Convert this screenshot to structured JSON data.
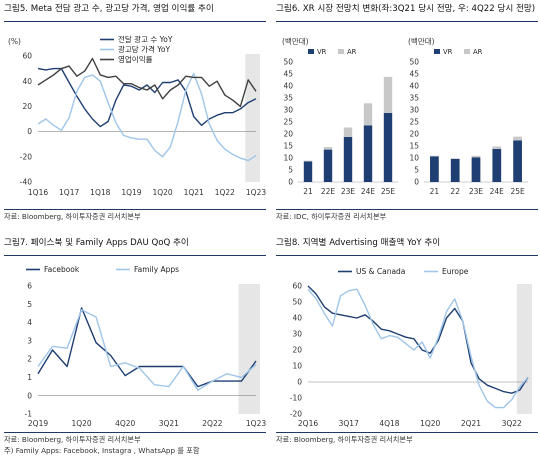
{
  "chart_data": [
    {
      "id": "fig5",
      "type": "line",
      "title": "그림5. Meta 전담 광고 수, 광고당 가격, 영업 이익률 추이",
      "unit": "(%)",
      "source": "자료: Bloomberg, 하이투자증권 리서치본부",
      "ylim": [
        -40,
        60
      ],
      "yticks": [
        -40,
        -20,
        0,
        20,
        40,
        60
      ],
      "xticks": [
        "1Q16",
        "1Q17",
        "1Q18",
        "1Q19",
        "1Q20",
        "1Q21",
        "1Q22",
        "1Q23"
      ],
      "x_start": "1Q16",
      "x_end": "1Q23",
      "x_points": 29,
      "shade_from": "4Q22",
      "legend_position": "top-center",
      "grid": false,
      "series": [
        {
          "name": "전달 광고 수 YoY",
          "color": "#1f3f73",
          "width": 1.4,
          "values": [
            50,
            49,
            50,
            50,
            39,
            28,
            18,
            10,
            4,
            8,
            25,
            37,
            36,
            33,
            37,
            31,
            39,
            39,
            41,
            32,
            12,
            5,
            10,
            13,
            15,
            15,
            18,
            23,
            26
          ]
        },
        {
          "name": "광고당 가격 YoY",
          "color": "#9fc5e8",
          "width": 1.4,
          "values": [
            6,
            10,
            5,
            1,
            11,
            32,
            43,
            45,
            40,
            23,
            7,
            -3,
            -5,
            -6,
            -6,
            -15,
            -20,
            -12,
            8,
            33,
            46,
            30,
            6,
            -7,
            -14,
            -18,
            -21,
            -23,
            -19
          ]
        },
        {
          "name": "영업이익률",
          "color": "#404040",
          "width": 1.4,
          "values": [
            37,
            41,
            45,
            50,
            52,
            44,
            48,
            58,
            45,
            43,
            44,
            38,
            38,
            35,
            33,
            37,
            26,
            33,
            37,
            44,
            43,
            43,
            36,
            40,
            29,
            25,
            20,
            41,
            32
          ]
        }
      ]
    },
    {
      "id": "fig6",
      "type": "bar",
      "title": "그림6. XR 시장 전망치 변화(좌:3Q21 당시 전망, 우: 4Q22 당시 전망)",
      "source": "자료: IDC, 하이투자증권 리서치본부",
      "ylim": [
        0,
        50
      ],
      "yticks": [
        0,
        5,
        10,
        15,
        20,
        25,
        30,
        35,
        40,
        45,
        50
      ],
      "legend_position": "top-left",
      "grid": false,
      "subcharts": [
        {
          "unit": "(백만대)",
          "categories": [
            "21",
            "22E",
            "23E",
            "24E",
            "25E"
          ],
          "series": [
            {
              "name": "VR",
              "color": "#1f3f73",
              "values": [
                8.6,
                13.5,
                18.8,
                23.6,
                28.8
              ]
            },
            {
              "name": "AR",
              "color": "#c8c8c8",
              "values": [
                0.3,
                1.1,
                3.9,
                9.2,
                15.0
              ]
            }
          ]
        },
        {
          "unit": "(백만대)",
          "categories": [
            "21",
            "22",
            "23E",
            "24E",
            "25E"
          ],
          "series": [
            {
              "name": "VR",
              "color": "#1f3f73",
              "values": [
                10.7,
                9.6,
                10.3,
                13.8,
                17.3
              ]
            },
            {
              "name": "AR",
              "color": "#c8c8c8",
              "values": [
                0.2,
                0.3,
                0.6,
                1.0,
                1.6
              ]
            }
          ]
        }
      ]
    },
    {
      "id": "fig7",
      "type": "line",
      "title": "그림7. 페이스북 및 Family Apps DAU QoQ 추이",
      "source": "자료: Bloomberg, 하이투자증권 리서치본부",
      "note": "주) Family Apps: Facebook, Instagra , WhatsApp 를 포함",
      "ylim": [
        -1,
        6
      ],
      "yticks": [
        -1,
        0,
        1,
        2,
        3,
        4,
        5,
        6
      ],
      "xticks": [
        "2Q19",
        "1Q20",
        "4Q20",
        "3Q21",
        "2Q22",
        "1Q23"
      ],
      "x_start": "2Q19",
      "x_end": "1Q23",
      "x_points": 16,
      "shade_from": "4Q22",
      "legend_position": "top-left",
      "grid": false,
      "series": [
        {
          "name": "Facebook",
          "color": "#1f3f73",
          "width": 1.4,
          "values": [
            1.2,
            2.5,
            1.6,
            4.8,
            2.9,
            2.2,
            1.1,
            1.6,
            1.6,
            1.6,
            1.6,
            0.5,
            0.8,
            0.8,
            0.8,
            1.9
          ]
        },
        {
          "name": "Family Apps",
          "color": "#9fc5e8",
          "width": 1.4,
          "values": [
            1.6,
            2.7,
            2.6,
            4.7,
            4.3,
            1.6,
            1.8,
            1.5,
            0.6,
            0.5,
            1.6,
            0.3,
            0.8,
            1.2,
            1.0,
            1.7
          ]
        }
      ]
    },
    {
      "id": "fig8",
      "type": "line",
      "title": "그림8. 지역별 Advertising 매출액 YoY 추이",
      "source": "자료: Bloomberg, 하이투자증권 리서치본부",
      "ylim": [
        -20,
        60
      ],
      "yticks": [
        -20,
        -10,
        0,
        10,
        20,
        30,
        40,
        50,
        60
      ],
      "xticks": [
        "2Q16",
        "3Q17",
        "4Q18",
        "1Q20",
        "2Q21",
        "3Q22"
      ],
      "x_start": "2Q16",
      "x_end": "1Q23",
      "x_points": 28,
      "shade_from": "4Q22",
      "legend_position": "top-center",
      "grid": false,
      "series": [
        {
          "name": "US & Canada",
          "color": "#1f3f73",
          "width": 1.4,
          "values": [
            60,
            55,
            47,
            43,
            42,
            41,
            40,
            42,
            38,
            33,
            32,
            30,
            28,
            27,
            20,
            18,
            26,
            40,
            46,
            38,
            12,
            2,
            -2,
            -4,
            -6,
            -7,
            -5,
            3
          ]
        },
        {
          "name": "Europe",
          "color": "#9fc5e8",
          "width": 1.4,
          "values": [
            58,
            52,
            43,
            35,
            54,
            57,
            58,
            48,
            36,
            27,
            29,
            28,
            24,
            20,
            25,
            15,
            28,
            44,
            52,
            38,
            16,
            -2,
            -12,
            -16,
            -16,
            -11,
            -3,
            3
          ]
        }
      ]
    }
  ]
}
